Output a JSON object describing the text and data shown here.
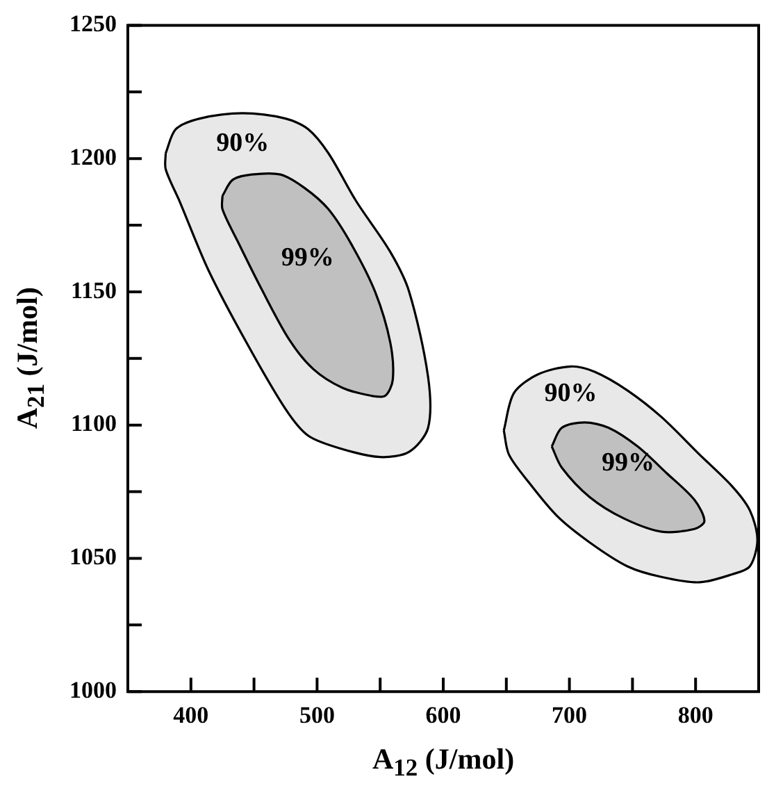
{
  "chart_data": {
    "type": "area",
    "xlabel": "A$_{12}$ (J/mol)",
    "ylabel": "A$_{21}$ (J/mol)",
    "xlim": [
      350,
      850
    ],
    "ylim": [
      1000,
      1250
    ],
    "xticks": [
      400,
      {
        "value": 450,
        "label": null
      },
      500,
      {
        "value": 550,
        "label": null
      },
      600,
      {
        "value": 650,
        "label": null
      },
      700,
      {
        "value": 750,
        "label": null
      },
      800
    ],
    "yticks": [
      1000,
      {
        "value": 1025,
        "label": null
      },
      1050,
      {
        "value": 1075,
        "label": null
      },
      1100,
      {
        "value": 1125,
        "label": null
      },
      1150,
      {
        "value": 1175,
        "label": null
      },
      1200,
      {
        "value": 1225,
        "label": null
      },
      1250
    ],
    "grid": false,
    "legend": false,
    "series": [
      {
        "name": "90%",
        "color": "#e8e8e8",
        "x": [
          380,
          388,
          407,
          441,
          475,
          493,
          509,
          531,
          558,
          573,
          588,
          588,
          573,
          550,
          520,
          493,
          475,
          444,
          414,
          391,
          380
        ],
        "values": [
          1202,
          1211,
          1215,
          1217,
          1215,
          1211,
          1202,
          1184,
          1165,
          1150,
          1118,
          1099,
          1090,
          1088,
          1091,
          1096,
          1106,
          1131,
          1158,
          1184,
          1196
        ]
      },
      {
        "name": "99%",
        "color": "#c0c0c0",
        "x": [
          425,
          433,
          448,
          471,
          490,
          509,
          527,
          546,
          558,
          560,
          554,
          543,
          520,
          497,
          478,
          456,
          437,
          425
        ],
        "values": [
          1186,
          1192,
          1194,
          1194,
          1189,
          1181,
          1168,
          1150,
          1131,
          1117,
          1111,
          1111,
          1114,
          1121,
          1132,
          1151,
          1169,
          1181
        ]
      },
      {
        "name": "90%",
        "color": "#e8e8e8",
        "x": [
          648,
          656,
          675,
          701,
          720,
          746,
          773,
          803,
          829,
          843,
          849,
          843,
          829,
          803,
          773,
          746,
          716,
          690,
          667,
          652
        ],
        "values": [
          1098,
          1112,
          1119,
          1122,
          1120,
          1113,
          1103,
          1089,
          1077,
          1068,
          1057,
          1047,
          1044,
          1041,
          1043,
          1047,
          1056,
          1066,
          1079,
          1089
        ]
      },
      {
        "name": "99%",
        "color": "#c0c0c0",
        "x": [
          686,
          694,
          712,
          731,
          754,
          777,
          799,
          807,
          799,
          773,
          743,
          716,
          694
        ],
        "values": [
          1092,
          1099,
          1101,
          1099,
          1092,
          1082,
          1072,
          1064,
          1061,
          1060,
          1065,
          1073,
          1084
        ]
      }
    ]
  }
}
